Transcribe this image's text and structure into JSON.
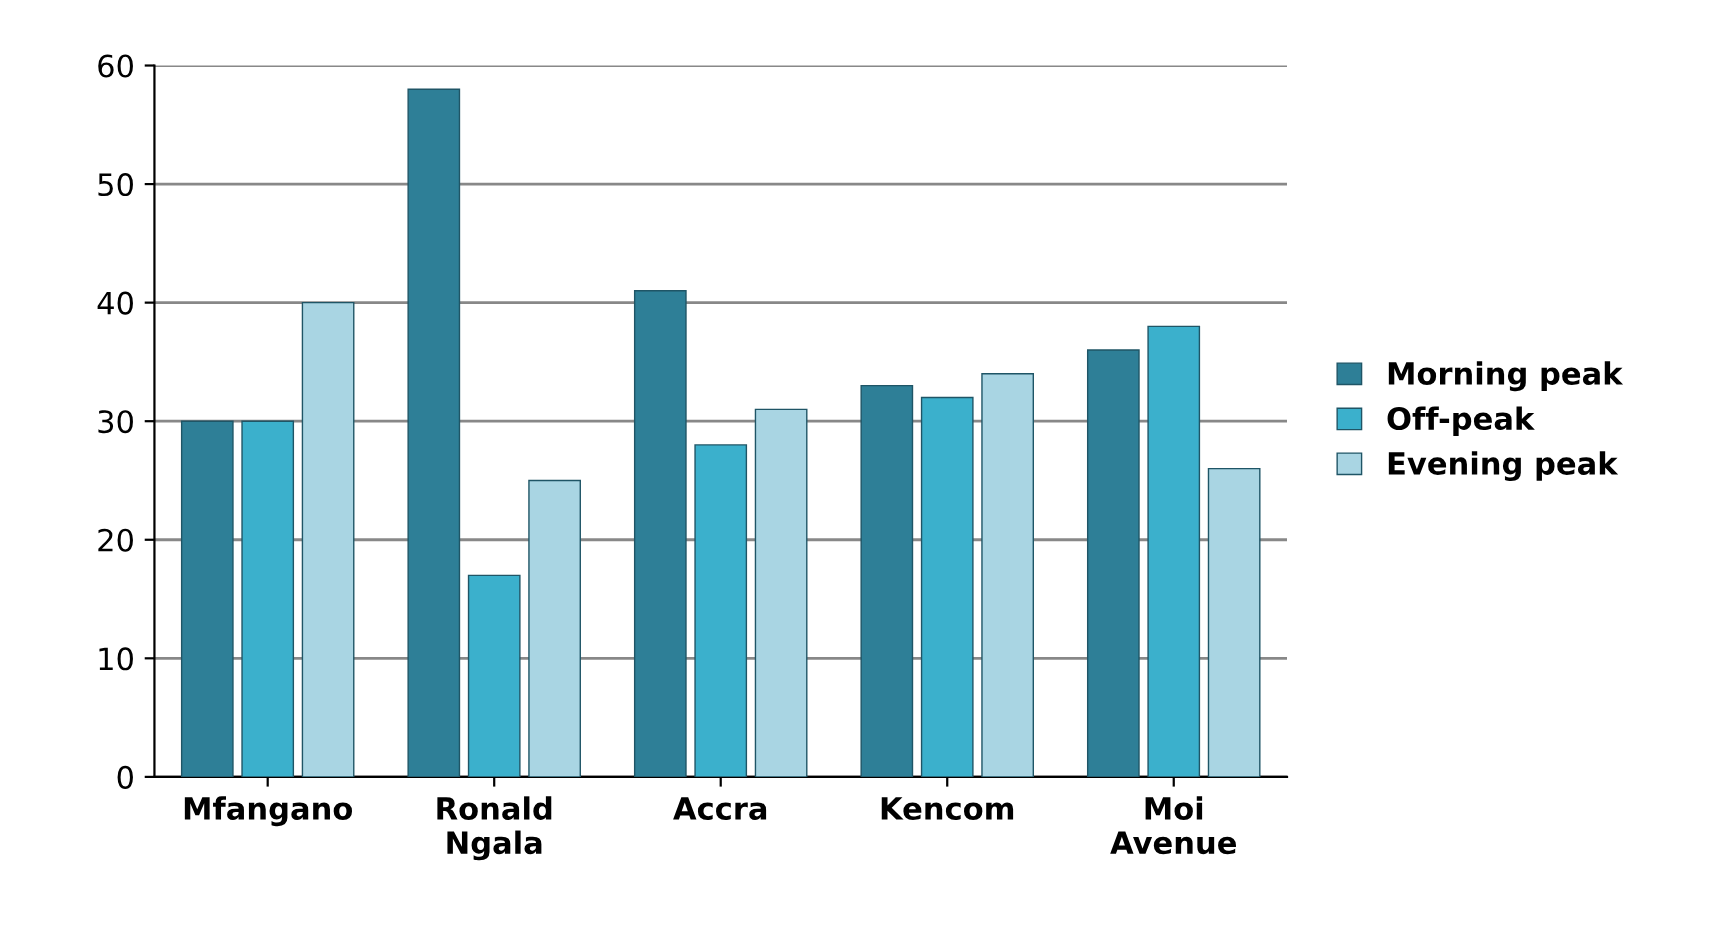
{
  "chart_data": {
    "type": "bar",
    "categories": [
      "Mfangano",
      "Ronald\nNgala",
      "Accra",
      "Kencom",
      "Moi\nAvenue"
    ],
    "series": [
      {
        "name": "Morning peak",
        "color": "#2e7f97",
        "values": [
          30,
          58,
          41,
          33,
          36
        ]
      },
      {
        "name": "Off-peak",
        "color": "#3bb0cc",
        "values": [
          30,
          17,
          28,
          32,
          38
        ]
      },
      {
        "name": "Evening peak",
        "color": "#a9d5e3",
        "values": [
          40,
          25,
          31,
          34,
          26
        ]
      }
    ],
    "ylim": [
      0,
      60
    ],
    "yticks": [
      0,
      10,
      20,
      30,
      40,
      50,
      60
    ],
    "grid": "y",
    "legend": "right"
  }
}
